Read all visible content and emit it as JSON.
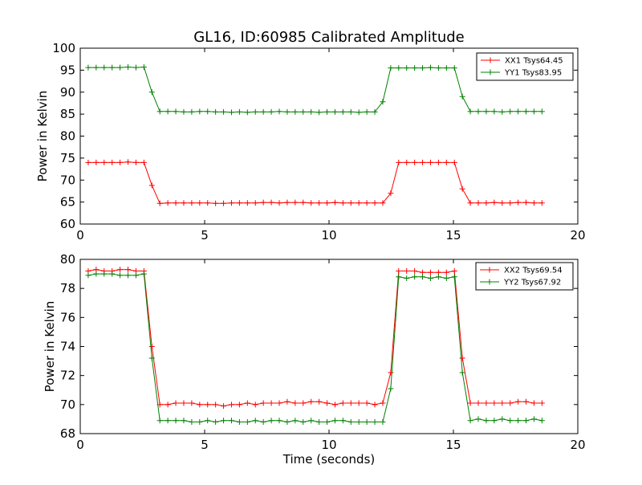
{
  "chart_data": [
    {
      "type": "line",
      "title": "GL16, ID:60985 Calibrated Amplitude",
      "xlabel": "",
      "ylabel": "Power in Kelvin",
      "xlim": [
        0,
        20
      ],
      "ylim": [
        60,
        100
      ],
      "xticks": [
        0,
        5,
        10,
        15,
        20
      ],
      "yticks": [
        60,
        65,
        70,
        75,
        80,
        85,
        90,
        95,
        100
      ],
      "legend": "top-right",
      "grid": false,
      "x": [
        0.32,
        0.64,
        0.96,
        1.28,
        1.6,
        1.92,
        2.24,
        2.56,
        2.88,
        3.2,
        3.52,
        3.84,
        4.16,
        4.48,
        4.8,
        5.12,
        5.44,
        5.76,
        6.08,
        6.4,
        6.72,
        7.04,
        7.36,
        7.68,
        8.0,
        8.32,
        8.64,
        8.96,
        9.28,
        9.6,
        9.92,
        10.24,
        10.56,
        10.88,
        11.2,
        11.52,
        11.84,
        12.16,
        12.48,
        12.8,
        13.12,
        13.44,
        13.76,
        14.08,
        14.4,
        14.72,
        15.04,
        15.36,
        15.68,
        16.0,
        16.32,
        16.64,
        16.96,
        17.28,
        17.6,
        17.92,
        18.24,
        18.56
      ],
      "series": [
        {
          "name": "XX1 Tsys64.45",
          "color": "#ff0000",
          "values": [
            74.0,
            74.0,
            74.0,
            74.0,
            74.0,
            74.1,
            74.0,
            74.0,
            68.8,
            64.7,
            64.8,
            64.8,
            64.8,
            64.8,
            64.8,
            64.8,
            64.7,
            64.7,
            64.8,
            64.8,
            64.8,
            64.8,
            64.9,
            64.9,
            64.8,
            64.9,
            64.9,
            64.9,
            64.8,
            64.8,
            64.8,
            64.9,
            64.8,
            64.8,
            64.8,
            64.8,
            64.8,
            64.8,
            67.0,
            74.0,
            74.0,
            74.0,
            74.0,
            74.0,
            74.0,
            74.0,
            74.0,
            68.0,
            64.8,
            64.8,
            64.8,
            64.9,
            64.8,
            64.8,
            64.9,
            64.9,
            64.8,
            64.8
          ]
        },
        {
          "name": "YY1 Tsys83.95",
          "color": "#008000",
          "values": [
            95.6,
            95.6,
            95.6,
            95.6,
            95.6,
            95.7,
            95.6,
            95.7,
            90.0,
            85.6,
            85.6,
            85.6,
            85.5,
            85.5,
            85.6,
            85.6,
            85.5,
            85.5,
            85.4,
            85.5,
            85.4,
            85.5,
            85.5,
            85.5,
            85.6,
            85.5,
            85.5,
            85.5,
            85.5,
            85.4,
            85.5,
            85.5,
            85.5,
            85.5,
            85.4,
            85.5,
            85.5,
            87.8,
            95.5,
            95.5,
            95.5,
            95.5,
            95.5,
            95.6,
            95.5,
            95.5,
            95.5,
            89.0,
            85.6,
            85.6,
            85.6,
            85.6,
            85.5,
            85.6,
            85.6,
            85.6,
            85.6,
            85.6
          ]
        }
      ]
    },
    {
      "type": "line",
      "title": "",
      "xlabel": "Time (seconds)",
      "ylabel": "Power in Kelvin",
      "xlim": [
        0,
        20
      ],
      "ylim": [
        68,
        80
      ],
      "xticks": [
        0,
        5,
        10,
        15,
        20
      ],
      "yticks": [
        68,
        70,
        72,
        74,
        76,
        78,
        80
      ],
      "legend": "top-right",
      "grid": false,
      "x": [
        0.32,
        0.64,
        0.96,
        1.28,
        1.6,
        1.92,
        2.24,
        2.56,
        2.88,
        3.2,
        3.52,
        3.84,
        4.16,
        4.48,
        4.8,
        5.12,
        5.44,
        5.76,
        6.08,
        6.4,
        6.72,
        7.04,
        7.36,
        7.68,
        8.0,
        8.32,
        8.64,
        8.96,
        9.28,
        9.6,
        9.92,
        10.24,
        10.56,
        10.88,
        11.2,
        11.52,
        11.84,
        12.16,
        12.48,
        12.8,
        13.12,
        13.44,
        13.76,
        14.08,
        14.4,
        14.72,
        15.04,
        15.36,
        15.68,
        16.0,
        16.32,
        16.64,
        16.96,
        17.28,
        17.6,
        17.92,
        18.24,
        18.56
      ],
      "series": [
        {
          "name": "XX2 Tsys69.54",
          "color": "#ff0000",
          "values": [
            79.2,
            79.3,
            79.2,
            79.2,
            79.3,
            79.3,
            79.2,
            79.2,
            74.0,
            70.0,
            70.0,
            70.1,
            70.1,
            70.1,
            70.0,
            70.0,
            70.0,
            69.9,
            70.0,
            70.0,
            70.1,
            70.0,
            70.1,
            70.1,
            70.1,
            70.2,
            70.1,
            70.1,
            70.2,
            70.2,
            70.1,
            70.0,
            70.1,
            70.1,
            70.1,
            70.1,
            70.0,
            70.1,
            72.2,
            79.2,
            79.2,
            79.2,
            79.1,
            79.1,
            79.1,
            79.1,
            79.2,
            73.2,
            70.1,
            70.1,
            70.1,
            70.1,
            70.1,
            70.1,
            70.2,
            70.2,
            70.1,
            70.1
          ]
        },
        {
          "name": "YY2 Tsys67.92",
          "color": "#008000",
          "values": [
            78.9,
            79.0,
            79.0,
            79.0,
            78.9,
            78.9,
            78.9,
            79.0,
            73.2,
            68.9,
            68.9,
            68.9,
            68.9,
            68.8,
            68.8,
            68.9,
            68.8,
            68.9,
            68.9,
            68.8,
            68.8,
            68.9,
            68.8,
            68.9,
            68.9,
            68.8,
            68.9,
            68.8,
            68.9,
            68.8,
            68.8,
            68.9,
            68.9,
            68.8,
            68.8,
            68.8,
            68.8,
            68.8,
            71.1,
            78.8,
            78.7,
            78.8,
            78.8,
            78.7,
            78.8,
            78.7,
            78.8,
            72.2,
            68.9,
            69.0,
            68.9,
            68.9,
            69.0,
            68.9,
            68.9,
            68.9,
            69.0,
            68.9
          ]
        }
      ]
    }
  ]
}
